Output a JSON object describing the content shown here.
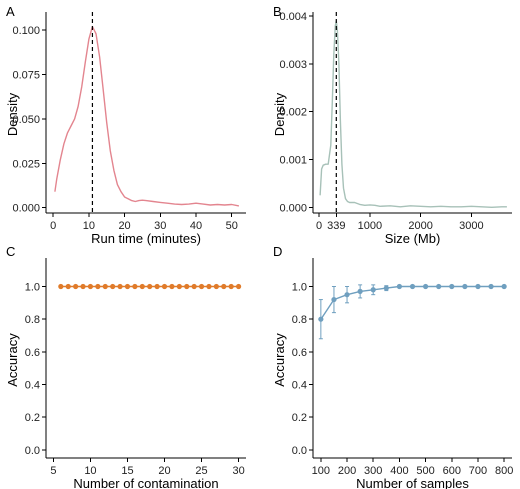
{
  "chart_data": [
    {
      "panel": "A",
      "type": "line",
      "xlabel": "Run time (minutes)",
      "ylabel": "Density",
      "xlim": [
        -2,
        54
      ],
      "ylim": [
        -0.003,
        0.108
      ],
      "xticks": [
        0,
        10,
        20,
        30,
        40,
        50
      ],
      "yticks": [
        0.0,
        0.025,
        0.05,
        0.075,
        0.1
      ],
      "ytick_labels": [
        "0.000",
        "0.025",
        "0.050",
        "0.075",
        "0.100"
      ],
      "color": "#e3858f",
      "vline": 11,
      "grid": false,
      "x": [
        0.5,
        1,
        2,
        3,
        4,
        5,
        6,
        7,
        8,
        9,
        10,
        11,
        12,
        13,
        14,
        15,
        16,
        17,
        18,
        19,
        20,
        21,
        22,
        23,
        24,
        25,
        26,
        28,
        30,
        32,
        34,
        36,
        38,
        40,
        42,
        44,
        46,
        48,
        50,
        52
      ],
      "y": [
        0.009,
        0.016,
        0.027,
        0.036,
        0.042,
        0.046,
        0.05,
        0.057,
        0.068,
        0.082,
        0.095,
        0.102,
        0.098,
        0.085,
        0.067,
        0.048,
        0.032,
        0.021,
        0.013,
        0.009,
        0.006,
        0.005,
        0.004,
        0.0035,
        0.004,
        0.0042,
        0.004,
        0.0035,
        0.003,
        0.0025,
        0.002,
        0.0018,
        0.002,
        0.0025,
        0.002,
        0.0015,
        0.0018,
        0.0015,
        0.0018,
        0.001
      ]
    },
    {
      "panel": "B",
      "type": "line",
      "xlabel": "Size (Mb)",
      "ylabel": "Density",
      "xlim": [
        -120,
        3800
      ],
      "ylim": [
        -0.00012,
        0.004
      ],
      "xticks": [
        0,
        339,
        1000,
        2000,
        3000
      ],
      "yticks": [
        0.0,
        0.001,
        0.002,
        0.003,
        0.004
      ],
      "ytick_labels": [
        "0.000",
        "0.001",
        "0.002",
        "0.003",
        "0.004"
      ],
      "color": "#a7c1b8",
      "vline": 339,
      "grid": false,
      "x": [
        20,
        50,
        80,
        130,
        180,
        230,
        260,
        290,
        320,
        339,
        360,
        390,
        420,
        450,
        480,
        520,
        560,
        600,
        650,
        700,
        800,
        900,
        1000,
        1100,
        1200,
        1400,
        1600,
        1800,
        2000,
        2200,
        2400,
        2600,
        2800,
        3000,
        3200,
        3400,
        3600,
        3700
      ],
      "y": [
        0.00025,
        0.0008,
        0.00088,
        0.0009,
        0.0009,
        0.0013,
        0.0022,
        0.0032,
        0.0038,
        0.0039,
        0.0037,
        0.003,
        0.0018,
        0.0009,
        0.0004,
        0.00018,
        0.00012,
        0.0001,
        0.0001,
        0.0001,
        6e-05,
        4e-05,
        5e-05,
        4e-05,
        2e-05,
        3e-05,
        1e-05,
        3e-05,
        2e-05,
        1e-05,
        2e-05,
        1e-05,
        1e-05,
        2e-05,
        1e-05,
        0.0,
        1e-05,
        1e-05
      ]
    },
    {
      "panel": "C",
      "type": "line",
      "xlabel": "Number of contamination",
      "ylabel": "Accuracy",
      "xlim": [
        4.0,
        31.0
      ],
      "ylim": [
        -0.05,
        1.15
      ],
      "xticks": [
        5,
        10,
        15,
        20,
        25,
        30
      ],
      "yticks": [
        0.0,
        0.2,
        0.4,
        0.6,
        0.8,
        1.0
      ],
      "ytick_labels": [
        "0.0",
        "0.2",
        "0.4",
        "0.6",
        "0.8",
        "1.0"
      ],
      "color": "#e07b2a",
      "grid": false,
      "x": [
        6,
        7,
        8,
        9,
        10,
        11,
        12,
        13,
        14,
        15,
        16,
        17,
        18,
        19,
        20,
        21,
        22,
        23,
        24,
        25,
        26,
        27,
        28,
        29,
        30
      ],
      "y": [
        1.0,
        1.0,
        1.0,
        1.0,
        1.0,
        1.0,
        1.0,
        1.0,
        1.0,
        1.0,
        1.0,
        1.0,
        1.0,
        1.0,
        1.0,
        1.0,
        1.0,
        1.0,
        1.0,
        1.0,
        1.0,
        1.0,
        1.0,
        1.0,
        1.0
      ]
    },
    {
      "panel": "D",
      "type": "line",
      "xlabel": "Number of samples",
      "ylabel": "Accuracy",
      "xlim": [
        70,
        830
      ],
      "ylim": [
        -0.05,
        1.15
      ],
      "xticks": [
        100,
        200,
        300,
        400,
        500,
        600,
        700,
        800
      ],
      "yticks": [
        0.0,
        0.2,
        0.4,
        0.6,
        0.8,
        1.0
      ],
      "ytick_labels": [
        "0.0",
        "0.2",
        "0.4",
        "0.6",
        "0.8",
        "1.0"
      ],
      "color": "#6f9fbf",
      "grid": false,
      "x": [
        100,
        150,
        200,
        250,
        300,
        350,
        400,
        450,
        500,
        550,
        600,
        650,
        700,
        750,
        800
      ],
      "y": [
        0.8,
        0.92,
        0.95,
        0.97,
        0.98,
        0.99,
        1.0,
        1.0,
        1.0,
        1.0,
        1.0,
        1.0,
        1.0,
        1.0,
        1.0
      ],
      "err": [
        0.12,
        0.08,
        0.05,
        0.04,
        0.03,
        0.015,
        0.005,
        0.0,
        0.0,
        0.0,
        0.0,
        0.0,
        0.0,
        0.0,
        0.0
      ]
    }
  ]
}
